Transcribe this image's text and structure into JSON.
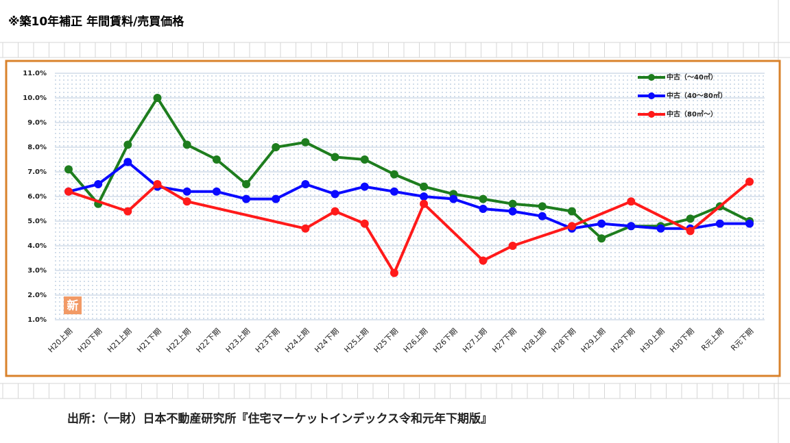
{
  "chart_data": {
    "type": "line",
    "title": "※築10年補正 年間賃料/売買価格",
    "source": "出所：（一財）日本不動産研究所『住宅マーケットインデックス令和元年下期版』",
    "badge": "新",
    "categories": [
      "H20上期",
      "H20下期",
      "H21上期",
      "H21下期",
      "H22上期",
      "H22下期",
      "H23上期",
      "H23下期",
      "H24上期",
      "H24下期",
      "H25上期",
      "H25下期",
      "H26上期",
      "H26下期",
      "H27上期",
      "H27下期",
      "H28上期",
      "H28下期",
      "H29上期",
      "H29下期",
      "H30上期",
      "H30下期",
      "R元上期",
      "R元下期"
    ],
    "series": [
      {
        "name": "中古（～40㎡）",
        "color": "#1e7d1e",
        "values": [
          7.1,
          5.7,
          8.1,
          10.0,
          8.1,
          7.5,
          6.5,
          8.0,
          8.2,
          7.6,
          7.5,
          6.9,
          6.4,
          6.1,
          5.9,
          5.7,
          5.6,
          5.4,
          4.3,
          4.8,
          4.8,
          5.1,
          5.6,
          5.0
        ]
      },
      {
        "name": "中古（40～80㎡）",
        "color": "#0a0aff",
        "values": [
          6.2,
          6.5,
          7.4,
          6.4,
          6.2,
          6.2,
          5.9,
          5.9,
          6.5,
          6.1,
          6.4,
          6.2,
          6.0,
          5.9,
          5.5,
          5.4,
          5.2,
          4.7,
          4.9,
          4.8,
          4.7,
          4.7,
          4.9,
          4.9
        ]
      },
      {
        "name": "中古（80㎡～）",
        "color": "#ff1a1a",
        "values": [
          6.2,
          null,
          5.4,
          6.5,
          5.8,
          null,
          null,
          null,
          4.7,
          5.4,
          4.9,
          2.9,
          5.7,
          null,
          3.4,
          4.0,
          null,
          4.8,
          null,
          5.8,
          null,
          4.6,
          null,
          6.6
        ]
      }
    ],
    "span_gaps": true,
    "ylim": [
      1.0,
      11.0
    ],
    "yticks": [
      {
        "value": 1.0,
        "label": "1.0%"
      },
      {
        "value": 2.0,
        "label": "2.0%"
      },
      {
        "value": 3.0,
        "label": "3.0%"
      },
      {
        "value": 4.0,
        "label": "4.0%"
      },
      {
        "value": 5.0,
        "label": "5.0%"
      },
      {
        "value": 6.0,
        "label": "6.0%"
      },
      {
        "value": 7.0,
        "label": "7.0%"
      },
      {
        "value": 8.0,
        "label": "8.0%"
      },
      {
        "value": 9.0,
        "label": "9.0%"
      },
      {
        "value": 10.0,
        "label": "10.0%"
      },
      {
        "value": 11.0,
        "label": "11.0%"
      }
    ],
    "grid": true,
    "legend": "top-right"
  }
}
